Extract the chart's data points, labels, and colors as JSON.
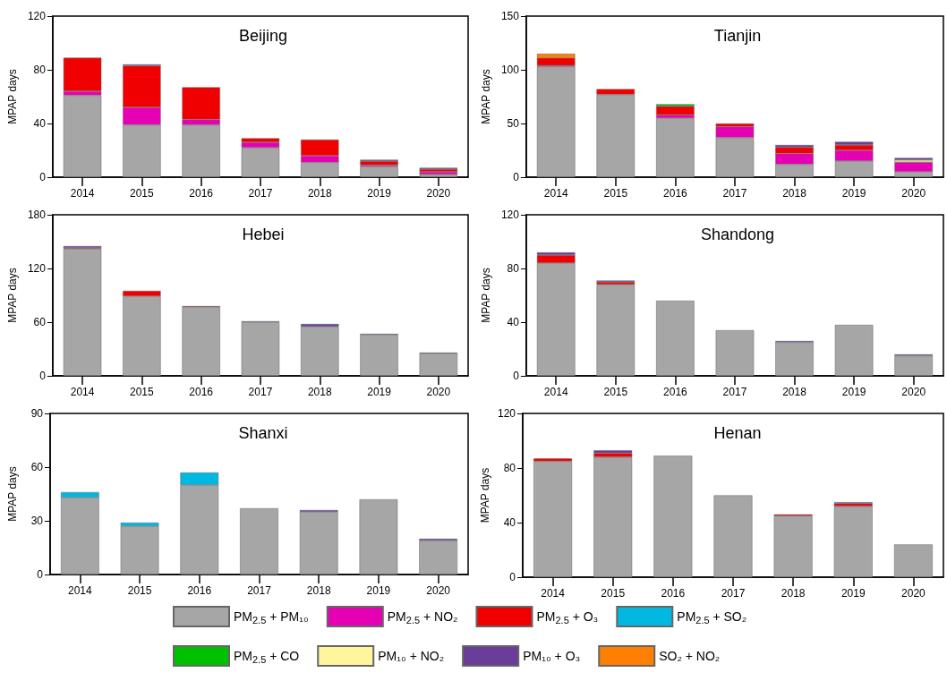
{
  "chart_data": [
    {
      "type": "bar",
      "title": "Beijing",
      "ylabel": "MPAP days",
      "categories": [
        "2014",
        "2015",
        "2016",
        "2017",
        "2018",
        "2019",
        "2020"
      ],
      "stacked": true,
      "ylim": [
        0,
        120
      ],
      "yticks": [
        0,
        40,
        80,
        120
      ],
      "grid": false,
      "legend": false,
      "series": [
        {
          "color": "#a6a6a6",
          "values": [
            61,
            39,
            39,
            22,
            11,
            8,
            2
          ]
        },
        {
          "color": "#e600b4",
          "values": [
            3,
            13,
            4,
            4,
            5,
            1,
            2
          ]
        },
        {
          "color": "#f00000",
          "values": [
            25,
            31,
            24,
            3,
            12,
            3,
            2
          ]
        },
        {
          "color": "#6a3d9a",
          "values": [
            null,
            1,
            null,
            null,
            null,
            1,
            1
          ]
        }
      ]
    },
    {
      "type": "bar",
      "title": "Tianjin",
      "ylabel": "MPAP days",
      "categories": [
        "2014",
        "2015",
        "2016",
        "2017",
        "2018",
        "2019",
        "2020"
      ],
      "stacked": true,
      "ylim": [
        0,
        150
      ],
      "yticks": [
        0,
        50,
        100,
        150
      ],
      "grid": false,
      "legend": false,
      "series": [
        {
          "color": "#a6a6a6",
          "values": [
            103,
            77,
            55,
            37,
            12,
            15,
            5
          ]
        },
        {
          "color": "#e600b4",
          "values": [
            1,
            null,
            3,
            10,
            10,
            10,
            9
          ]
        },
        {
          "color": "#f00000",
          "values": [
            7,
            5,
            8,
            3,
            6,
            5,
            null
          ]
        },
        {
          "color": "#00c000",
          "values": [
            null,
            null,
            2,
            null,
            null,
            null,
            null
          ]
        },
        {
          "color": "#fff59d",
          "values": [
            null,
            null,
            null,
            null,
            null,
            null,
            2
          ]
        },
        {
          "color": "#6a3d9a",
          "values": [
            null,
            null,
            null,
            null,
            2,
            3,
            2
          ]
        },
        {
          "color": "#ff7f00",
          "values": [
            4,
            null,
            null,
            null,
            null,
            null,
            null
          ]
        }
      ]
    },
    {
      "type": "bar",
      "title": "Hebei",
      "ylabel": "MPAP days",
      "categories": [
        "2014",
        "2015",
        "2016",
        "2017",
        "2018",
        "2019",
        "2020"
      ],
      "stacked": true,
      "ylim": [
        0,
        180
      ],
      "yticks": [
        0,
        60,
        120,
        180
      ],
      "grid": false,
      "legend": false,
      "series": [
        {
          "color": "#a6a6a6",
          "values": [
            142,
            89,
            77,
            60,
            55,
            46,
            25
          ]
        },
        {
          "color": "#f00000",
          "values": [
            1,
            6,
            1,
            null,
            null,
            null,
            null
          ]
        },
        {
          "color": "#6a3d9a",
          "values": [
            2,
            null,
            null,
            1,
            3,
            1,
            1
          ]
        }
      ]
    },
    {
      "type": "bar",
      "title": "Shandong",
      "ylabel": "MPAP days",
      "categories": [
        "2014",
        "2015",
        "2016",
        "2017",
        "2018",
        "2019",
        "2020"
      ],
      "stacked": true,
      "ylim": [
        0,
        120
      ],
      "yticks": [
        0,
        40,
        80,
        120
      ],
      "grid": false,
      "legend": false,
      "series": [
        {
          "color": "#a6a6a6",
          "values": [
            84,
            68,
            56,
            34,
            25,
            38,
            15
          ]
        },
        {
          "color": "#f00000",
          "values": [
            6,
            2,
            null,
            null,
            null,
            null,
            null
          ]
        },
        {
          "color": "#6a3d9a",
          "values": [
            2,
            1,
            null,
            null,
            1,
            null,
            1
          ]
        }
      ]
    },
    {
      "type": "bar",
      "title": "Shanxi",
      "ylabel": "MPAP days",
      "categories": [
        "2014",
        "2015",
        "2016",
        "2017",
        "2018",
        "2019",
        "2020"
      ],
      "stacked": true,
      "ylim": [
        0,
        90
      ],
      "yticks": [
        0,
        30,
        60,
        90
      ],
      "grid": false,
      "legend": false,
      "series": [
        {
          "color": "#a6a6a6",
          "values": [
            43,
            27,
            50,
            37,
            35,
            42,
            19
          ]
        },
        {
          "color": "#00b8e0",
          "values": [
            3,
            2,
            7,
            null,
            null,
            null,
            null
          ]
        },
        {
          "color": "#6a3d9a",
          "values": [
            null,
            null,
            null,
            null,
            1,
            null,
            1
          ]
        }
      ]
    },
    {
      "type": "bar",
      "title": "Henan",
      "ylabel": "MPAP days",
      "categories": [
        "2014",
        "2015",
        "2016",
        "2017",
        "2018",
        "2019",
        "2020"
      ],
      "stacked": true,
      "ylim": [
        0,
        120
      ],
      "yticks": [
        0,
        40,
        80,
        120
      ],
      "grid": false,
      "legend": "bottom",
      "series": [
        {
          "name": "PM$_{2.5}$ + PM₁₀",
          "color": "#a6a6a6",
          "values": [
            85,
            88,
            89,
            60,
            45,
            52,
            24
          ]
        },
        {
          "name": "PM$_{2.5}$ + NO₂",
          "color": "#e600b4",
          "values": [
            null,
            null,
            null,
            null,
            null,
            null,
            null
          ]
        },
        {
          "name": "PM$_{2.5}$ + O₃",
          "color": "#f00000",
          "values": [
            2,
            3,
            null,
            null,
            1,
            2,
            null
          ]
        },
        {
          "name": "PM$_{2.5}$ + SO₂",
          "color": "#00b8e0",
          "values": [
            null,
            null,
            null,
            null,
            null,
            null,
            null
          ]
        },
        {
          "name": "PM$_{2.5}$ + CO",
          "color": "#00c000",
          "values": [
            null,
            null,
            null,
            null,
            null,
            null,
            null
          ]
        },
        {
          "name": "PM₁₀ + NO₂",
          "color": "#fff59d",
          "values": [
            null,
            null,
            null,
            null,
            null,
            null,
            null
          ]
        },
        {
          "name": "PM₁₀ + O₃",
          "color": "#6a3d9a",
          "values": [
            null,
            2,
            null,
            null,
            null,
            1,
            null
          ]
        },
        {
          "name": "SO₂ + NO₂",
          "color": "#ff7f00",
          "values": [
            null,
            null,
            null,
            null,
            null,
            null,
            null
          ]
        }
      ]
    }
  ]
}
